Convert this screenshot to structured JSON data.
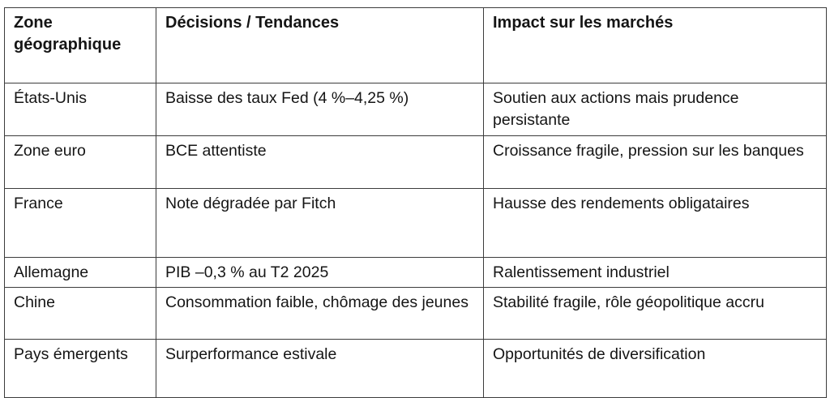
{
  "table": {
    "colors": {
      "border": "#3c3c3c",
      "text": "#151515",
      "background": "#ffffff"
    },
    "columns": [
      {
        "label": "Zone géographique"
      },
      {
        "label": "Décisions / Tendances"
      },
      {
        "label": "Impact sur les marchés"
      }
    ],
    "rows": [
      {
        "zone": "États-Unis",
        "decision": "Baisse des taux Fed (4 %–4,25 %)",
        "impact": "Soutien aux actions mais prudence persistante"
      },
      {
        "zone": "Zone euro",
        "decision": "BCE attentiste",
        "impact": "Croissance fragile, pression sur les banques"
      },
      {
        "zone": "France",
        "decision": "Note dégradée par Fitch",
        "impact": "Hausse des rendements obligataires"
      },
      {
        "zone": "Allemagne",
        "decision": "PIB –0,3 % au T2 2025",
        "impact": "Ralentissement industriel"
      },
      {
        "zone": "Chine",
        "decision": "Consommation faible, chômage des jeunes",
        "impact": "Stabilité fragile, rôle géopolitique accru"
      },
      {
        "zone": "Pays émergents",
        "decision": "Surperformance estivale",
        "impact": "Opportunités de diversification"
      }
    ]
  }
}
